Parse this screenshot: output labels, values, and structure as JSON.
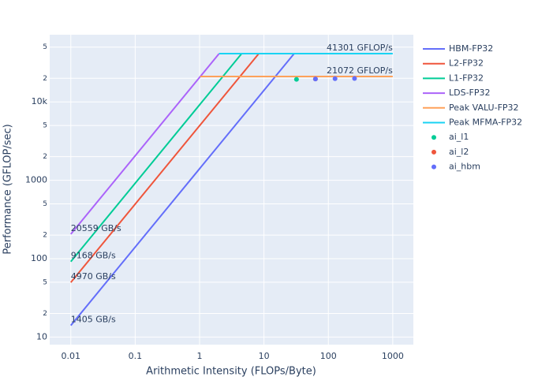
{
  "chart_data": {
    "type": "line",
    "xlabel": "Arithmetic Intensity (FLOPs/Byte)",
    "ylabel": "Performance (GFLOP/sec)",
    "xscale": "log",
    "yscale": "log",
    "grid": true,
    "legend": "right",
    "xlim": [
      0.0047,
      2090
    ],
    "ylim": [
      8,
      72000
    ],
    "xticks": [
      0.01,
      0.1,
      1,
      10,
      100,
      1000
    ],
    "yticks": [
      10,
      {
        "value": 20,
        "label": "2"
      },
      {
        "value": 50,
        "label": "5"
      },
      100,
      {
        "value": 200,
        "label": "2"
      },
      {
        "value": 500,
        "label": "5"
      },
      1000,
      {
        "value": 2000,
        "label": "2"
      },
      {
        "value": 5000,
        "label": "5"
      },
      {
        "value": 10000,
        "label": "10k"
      },
      {
        "value": 20000,
        "label": "2"
      },
      {
        "value": 50000,
        "label": "5"
      }
    ],
    "series": [
      {
        "name": "HBM-FP32",
        "color": "#636efa",
        "mode": "lines",
        "x": [
          0.01,
          29.4
        ],
        "values": [
          14.05,
          41301
        ]
      },
      {
        "name": "L2-FP32",
        "color": "#ef553b",
        "mode": "lines",
        "x": [
          0.01,
          8.31
        ],
        "values": [
          49.7,
          41301
        ]
      },
      {
        "name": "L1-FP32",
        "color": "#00cc96",
        "mode": "lines",
        "x": [
          0.01,
          4.5
        ],
        "values": [
          91.68,
          41301
        ]
      },
      {
        "name": "LDS-FP32",
        "color": "#ab63fa",
        "mode": "lines",
        "x": [
          0.01,
          2.01
        ],
        "values": [
          205.59,
          41301
        ]
      },
      {
        "name": "Peak VALU-FP32",
        "color": "#ffa15a",
        "mode": "lines",
        "x": [
          1.025,
          1000
        ],
        "values": [
          21072,
          21072
        ]
      },
      {
        "name": "Peak MFMA-FP32",
        "color": "#19d3f3",
        "mode": "lines",
        "x": [
          2.01,
          1000
        ],
        "values": [
          41301,
          41301
        ]
      },
      {
        "name": "ai_l1",
        "color": "#00cc96",
        "mode": "markers",
        "x": [
          32
        ],
        "values": [
          19400
        ]
      },
      {
        "name": "ai_l2",
        "color": "#ef553b",
        "mode": "markers",
        "x": [
          63
        ],
        "values": [
          19600
        ]
      },
      {
        "name": "ai_hbm",
        "color": "#636efa",
        "mode": "markers",
        "x": [
          63,
          127,
          255
        ],
        "values": [
          19600,
          19800,
          19900
        ]
      }
    ],
    "annotations": [
      "1405 GB/s",
      "4970 GB/s",
      "9168 GB/s",
      "20559 GB/s",
      "21072 GFLOP/s",
      "41301 GFLOP/s"
    ]
  }
}
